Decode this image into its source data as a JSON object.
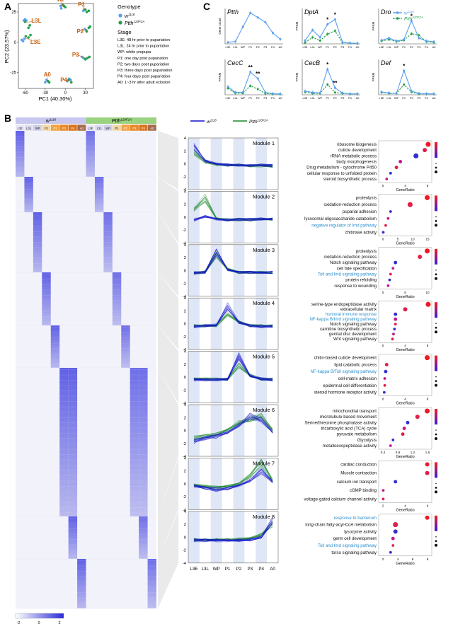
{
  "panel_labels": {
    "a": "A",
    "b": "B",
    "c": "C"
  },
  "colors": {
    "wt": "#5aa0f0",
    "mut": "#22a04a",
    "stage_label": "#c8661a",
    "wt_line": "#1010cc",
    "mut_line": "#1c8a2c",
    "heat_high": "#2a2ad8",
    "pathway_blue": "#2a8fd0",
    "dot_red": "#ee1b24"
  },
  "panel_a": {
    "xlabel": "PC1 (40.30%)",
    "ylabel": "PC2 (23.57%)",
    "xticks": [
      "-60",
      "-30",
      "0",
      "30"
    ],
    "yticks": [
      "25",
      "0",
      "-25"
    ],
    "xlim": [
      -70,
      42
    ],
    "ylim": [
      -38,
      32
    ],
    "legend_genotype_title": "Genotype",
    "legend_genotypes": [
      "w",
      "Ptth"
    ],
    "legend_genotype_sups": [
      "1118",
      "120F2A"
    ],
    "stage_title": "Stage",
    "stage_items": [
      "L3E: 48 hr prior to pupariation",
      "L3L: 24 hr prior to pupariation",
      "WP: white prepupa",
      "P1: one day post pupariation",
      "P2: two days post pupariation",
      "P3: three days post pupariation",
      "P4: four days post pupariation",
      "A0: 1~3 hr after adult eclosion"
    ],
    "clusters": [
      {
        "label": "L3L",
        "wt": [
          [
            -62,
            18
          ],
          [
            -60,
            19
          ],
          [
            -58,
            18
          ]
        ],
        "mut": [
          [
            -60,
            17
          ],
          [
            -55,
            12
          ],
          [
            -53,
            14
          ]
        ]
      },
      {
        "label": "L3E",
        "wt": [
          [
            -65,
            2
          ],
          [
            -63,
            1
          ],
          [
            -61,
            3
          ]
        ],
        "mut": [
          [
            -59,
            5
          ],
          [
            -55,
            4
          ],
          [
            -52,
            6
          ]
        ]
      },
      {
        "label": "WP",
        "wt": [
          [
            -7,
            30
          ],
          [
            -6,
            28
          ]
        ],
        "mut": [
          [
            -4,
            31
          ],
          [
            -2,
            30
          ],
          [
            0,
            29
          ]
        ]
      },
      {
        "label": "P1",
        "wt": [
          [
            27,
            26
          ],
          [
            28,
            27
          ]
        ],
        "mut": [
          [
            30,
            27
          ],
          [
            32,
            25
          ],
          [
            35,
            26
          ]
        ]
      },
      {
        "label": "P2",
        "wt": [
          [
            29,
            11
          ],
          [
            31,
            10
          ]
        ],
        "mut": [
          [
            32,
            9
          ],
          [
            35,
            12
          ],
          [
            37,
            13
          ]
        ]
      },
      {
        "label": "P3",
        "wt": [
          [
            25,
            -12
          ],
          [
            27,
            -13
          ]
        ],
        "mut": [
          [
            30,
            -14
          ],
          [
            33,
            -13
          ],
          [
            36,
            -12
          ]
        ]
      },
      {
        "label": "P4",
        "wt": [
          [
            3,
            -32
          ],
          [
            6,
            -30
          ],
          [
            8,
            -31
          ]
        ],
        "mut": [
          [
            5,
            -31
          ],
          [
            9,
            -33
          ]
        ]
      },
      {
        "label": "A0",
        "wt": [
          [
            -30,
            -33
          ],
          [
            -28,
            -31
          ]
        ],
        "mut": [
          [
            -26,
            -32
          ],
          [
            -24,
            -33
          ]
        ]
      }
    ]
  },
  "panel_c": {
    "legend": [
      "w",
      "Ptth"
    ],
    "legend_sups": [
      "1118",
      "120F2A"
    ],
    "categories": [
      "L3E",
      "L3L",
      "WP",
      "P1",
      "P2",
      "P3",
      "P4",
      "A0"
    ],
    "charts": [
      {
        "title": "Ptth",
        "ylabel": "Gene count",
        "ymax": 42,
        "wt": [
          2,
          3,
          22,
          40,
          34,
          28,
          14,
          6
        ],
        "mut": null,
        "stars": []
      },
      {
        "title": "DptA",
        "ylabel": "FPKM",
        "ymax": 200,
        "wt": [
          20,
          85,
          40,
          120,
          150,
          10,
          5,
          3
        ],
        "mut": [
          8,
          40,
          20,
          60,
          80,
          8,
          4,
          2
        ],
        "stars": [
          {
            "i": 3,
            "t": "*"
          },
          {
            "i": 4,
            "t": "*"
          }
        ]
      },
      {
        "title": "Dro",
        "ylabel": "FPKM",
        "ymax": 45,
        "wt": [
          5,
          8,
          4,
          6,
          32,
          8,
          4,
          3
        ],
        "mut": [
          4,
          6,
          3,
          5,
          14,
          12,
          3,
          2
        ],
        "stars": [
          {
            "i": 4,
            "t": "*"
          }
        ]
      },
      {
        "title": "CecC",
        "ylabel": "FPKM",
        "ymax": 80,
        "wt": [
          20,
          6,
          6,
          56,
          40,
          6,
          3,
          2
        ],
        "mut": [
          16,
          4,
          4,
          22,
          14,
          3,
          2,
          2
        ],
        "stars": [
          {
            "i": 3,
            "t": "**"
          },
          {
            "i": 4,
            "t": "**"
          }
        ]
      },
      {
        "title": "CecB",
        "ylabel": "FPKM",
        "ymax": 70,
        "wt": [
          8,
          5,
          4,
          55,
          15,
          4,
          2,
          2
        ],
        "mut": [
          6,
          3,
          3,
          22,
          5,
          3,
          2,
          2
        ],
        "stars": [
          {
            "i": 3,
            "t": "*"
          },
          {
            "i": 4,
            "t": "**"
          }
        ]
      },
      {
        "title": "Def",
        "ylabel": "FPKM",
        "ymax": 70,
        "wt": [
          6,
          4,
          3,
          52,
          8,
          3,
          2,
          2
        ],
        "mut": [
          5,
          3,
          3,
          22,
          6,
          2,
          2,
          2
        ],
        "stars": [
          {
            "i": 3,
            "t": "*"
          }
        ]
      }
    ]
  },
  "panel_b": {
    "header_wt": "w",
    "header_wt_sup": "1118",
    "header_mut": "Ptth",
    "header_mut_sup": "120F2A",
    "stages": [
      "L3E",
      "L3L",
      "WP",
      "P1",
      "P2",
      "P3",
      "P4",
      "A0"
    ],
    "scale_ticks": [
      "-2",
      "0",
      "2"
    ],
    "legend": [
      "w",
      "Ptth"
    ],
    "legend_sups": [
      "1118",
      "120F2A"
    ],
    "xcats": [
      "L3E",
      "L3L",
      "WP",
      "P1",
      "P2",
      "P3",
      "P4",
      "A0"
    ],
    "yticks": [
      "4",
      "2",
      "0",
      "-2",
      "-4"
    ],
    "modules": [
      {
        "name": "Module 1",
        "wt": [
          2.6,
          0.5,
          0,
          -0.2,
          -0.2,
          -0.3,
          -0.2,
          -0.3
        ],
        "mut": [
          1.8,
          0.3,
          -0.1,
          -0.2,
          -0.2,
          -0.3,
          -0.3,
          -0.4
        ],
        "terms": [
          "ribosome biogenesis",
          "cuticle development",
          "rRNA metabolic process",
          "body morphogenesis",
          "Drug metabolism - cytochrome P450",
          "cellular response to unfolded protein",
          "steroid biosynthetic process"
        ],
        "blue": [],
        "ratio": [
          0.97,
          0.9,
          0.72,
          0.4,
          0.32,
          0.2,
          0.12
        ],
        "size": [
          5,
          4,
          5,
          3,
          3,
          2,
          2
        ],
        "xticks": [
          "0",
          "4",
          "8"
        ]
      },
      {
        "name": "Module 2",
        "wt": [
          -0.4,
          0.1,
          -0.3,
          -0.4,
          -0.3,
          -0.4,
          -0.3,
          -0.3
        ],
        "mut": [
          1.2,
          3.0,
          -0.2,
          -0.4,
          -0.4,
          -0.4,
          -0.3,
          -0.3
        ],
        "terms": [
          "proteolysis",
          "oxidation-reduction process",
          "puparial adhesion",
          "lysosomal oligosaccharide catabolism",
          "negative regulator of Imd pathway",
          "chitinase activity"
        ],
        "blue": [
          4
        ],
        "ratio": [
          0.95,
          0.6,
          0.2,
          0.15,
          0.1,
          0.05
        ],
        "size": [
          5,
          5,
          2,
          2,
          2,
          2
        ],
        "xticks": [
          "0",
          "5",
          "10",
          "15"
        ]
      },
      {
        "name": "Module 3",
        "wt": [
          -0.4,
          -0.3,
          2.8,
          0.1,
          -0.3,
          -0.3,
          -0.3,
          -0.3
        ],
        "mut": [
          -0.4,
          -0.2,
          2.4,
          0.2,
          -0.3,
          -0.3,
          -0.3,
          -0.3
        ],
        "terms": [
          "proteolysis",
          "oxidation-reduction process",
          "Notch signaling pathway",
          "cell fate specification",
          "Toll and Imd signaling pathway",
          "protein refolding",
          "response to wounding"
        ],
        "blue": [
          4
        ],
        "ratio": [
          0.95,
          0.8,
          0.3,
          0.25,
          0.2,
          0.18,
          0.15
        ],
        "size": [
          5,
          4,
          3,
          2,
          2,
          2,
          2
        ],
        "xticks": [
          "0",
          "5",
          "10"
        ]
      },
      {
        "name": "Module 4",
        "wt": [
          -0.4,
          -0.3,
          -0.2,
          2.7,
          0.2,
          -0.3,
          -0.4,
          -0.4
        ],
        "mut": [
          -0.3,
          -0.3,
          -0.3,
          1.6,
          0.3,
          -0.3,
          -0.3,
          -0.3
        ],
        "terms": [
          "serine-type endopeptidase activity",
          "extracellular matrix",
          "humoral immune response",
          "NF-kappa B/Imd signaling pathway",
          "Notch signaling pathway",
          "carnitine biosynthetic process",
          "genital disc development",
          "Wnt signaling pathway"
        ],
        "blue": [
          2,
          3
        ],
        "ratio": [
          0.97,
          0.5,
          0.3,
          0.3,
          0.3,
          0.28,
          0.26,
          0.24
        ],
        "size": [
          5,
          4,
          3,
          3,
          2,
          2,
          2,
          2
        ],
        "xticks": [
          "0",
          "4",
          "8"
        ]
      },
      {
        "name": "Module 5",
        "wt": [
          -0.4,
          -0.4,
          -0.4,
          -0.3,
          3.2,
          0.2,
          -0.3,
          -0.4
        ],
        "mut": [
          -0.3,
          -0.3,
          -0.3,
          -0.3,
          1.8,
          0.3,
          -0.3,
          -0.3
        ],
        "terms": [
          "chitin-based cuticle development",
          "lipid catabolic process",
          "NF-kappa B/Toll signaling pathway",
          "cell-matrix adhesion",
          "epidermal cell differentiation",
          "steroid hormone receptor activity"
        ],
        "blue": [
          2
        ],
        "ratio": [
          0.95,
          0.12,
          0.1,
          0.08,
          0.08,
          0.07
        ],
        "size": [
          5,
          3,
          3,
          2,
          2,
          2
        ],
        "xticks": [
          "0",
          "4",
          "8"
        ]
      },
      {
        "name": "Module 6",
        "wt": [
          -1.6,
          -1.2,
          -0.9,
          -0.3,
          0.8,
          2.2,
          1.6,
          -0.3
        ],
        "mut": [
          -1.2,
          -0.9,
          -0.6,
          0.1,
          1.2,
          1.8,
          2.2,
          0.1
        ],
        "terms": [
          "mitochondrial transport",
          "microtubule-based movement",
          "Serine/threonine phosphatase activity",
          "tricarboxylic acid (TCA) cycle",
          "pyruvate metabolism",
          "Glycolysis",
          "metalloexopeptidase activity"
        ],
        "blue": [],
        "ratio": [
          0.95,
          0.75,
          0.55,
          0.48,
          0.45,
          0.25,
          0.2
        ],
        "size": [
          5,
          4,
          3,
          3,
          3,
          2,
          2
        ],
        "xticks": [
          "0.4",
          "0.8",
          "1.2",
          "1.6"
        ]
      },
      {
        "name": "Module 7",
        "wt": [
          -0.3,
          -0.6,
          -0.9,
          -0.7,
          -0.3,
          0.5,
          2.0,
          0.3
        ],
        "mut": [
          -0.2,
          -0.4,
          -0.6,
          -0.4,
          0.0,
          1.2,
          3.3,
          0.5
        ],
        "terms": [
          "cardiac conduction",
          "Muscle contraction",
          "calcium ion transport",
          "cGMP binding",
          "voltage-gated calcium channel activity"
        ],
        "blue": [],
        "ratio": [
          0.95,
          0.95,
          0.3,
          0.05,
          0.05
        ],
        "size": [
          4,
          4,
          3,
          2,
          2
        ],
        "xticks": [
          "2",
          "4",
          "6"
        ]
      },
      {
        "name": "Module 8",
        "wt": [
          -0.5,
          -0.5,
          -0.5,
          -0.5,
          -0.5,
          -0.4,
          0.0,
          2.6
        ],
        "mut": [
          -0.4,
          -0.4,
          -0.4,
          -0.4,
          -0.3,
          -0.2,
          0.4,
          2.1
        ],
        "terms": [
          "response to bacterium",
          "long-chain fatty-acyl-CoA metabolism",
          "lysozyme activity",
          "germ cell development",
          "Toll and Imd signaling pathway",
          "torso signaling pathway"
        ],
        "blue": [
          0,
          4
        ],
        "ratio": [
          0.95,
          0.3,
          0.3,
          0.25,
          0.25,
          0.2
        ],
        "size": [
          4,
          5,
          4,
          3,
          2,
          2
        ],
        "xticks": [
          "2",
          "4",
          "6",
          "8"
        ]
      }
    ],
    "goxlabel": "GeneRatio"
  }
}
